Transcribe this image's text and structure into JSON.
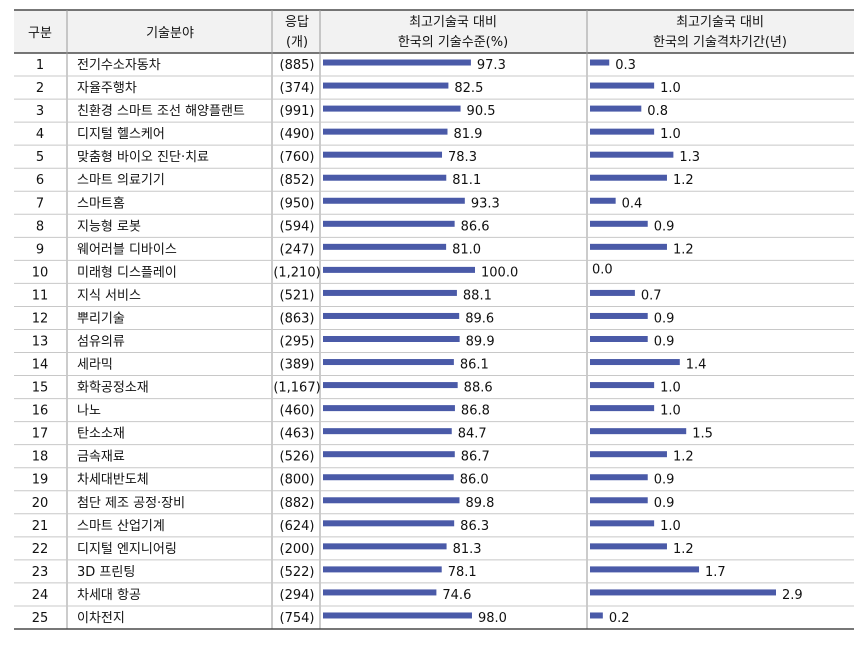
{
  "headers": {
    "no": "구분",
    "field": "기술분야",
    "resp_line1": "응답",
    "resp_line2": "(개)",
    "level_line1": "최고기술국 대비",
    "level_line2": "한국의 기술수준(%)",
    "gap_line1": "최고기술국 대비",
    "gap_line2": "한국의 기술격차기간(년)"
  },
  "chart_data": {
    "type": "table",
    "columns": [
      "구분",
      "기술분야",
      "응답 (개)",
      "최고기술국 대비 한국의 기술수준(%)",
      "최고기술국 대비 한국의 기술격차기간(년)"
    ],
    "level_max": 100,
    "gap_max": 2.9,
    "rows": [
      {
        "no": "1",
        "field": "전기수소자동차",
        "responses": "(885)",
        "level": 97.3,
        "level_label": "97.3",
        "gap": 0.3,
        "gap_label": "0.3"
      },
      {
        "no": "2",
        "field": "자율주행차",
        "responses": "(374)",
        "level": 82.5,
        "level_label": "82.5",
        "gap": 1.0,
        "gap_label": "1.0"
      },
      {
        "no": "3",
        "field": "친환경 스마트 조선 해양플랜트",
        "responses": "(991)",
        "level": 90.5,
        "level_label": "90.5",
        "gap": 0.8,
        "gap_label": "0.8"
      },
      {
        "no": "4",
        "field": "디지털 헬스케어",
        "responses": "(490)",
        "level": 81.9,
        "level_label": "81.9",
        "gap": 1.0,
        "gap_label": "1.0"
      },
      {
        "no": "5",
        "field": "맞춤형 바이오 진단·치료",
        "responses": "(760)",
        "level": 78.3,
        "level_label": "78.3",
        "gap": 1.3,
        "gap_label": "1.3"
      },
      {
        "no": "6",
        "field": "스마트 의료기기",
        "responses": "(852)",
        "level": 81.1,
        "level_label": "81.1",
        "gap": 1.2,
        "gap_label": "1.2"
      },
      {
        "no": "7",
        "field": "스마트홈",
        "responses": "(950)",
        "level": 93.3,
        "level_label": "93.3",
        "gap": 0.4,
        "gap_label": "0.4"
      },
      {
        "no": "8",
        "field": "지능형 로봇",
        "responses": "(594)",
        "level": 86.6,
        "level_label": "86.6",
        "gap": 0.9,
        "gap_label": "0.9"
      },
      {
        "no": "9",
        "field": "웨어러블 디바이스",
        "responses": "(247)",
        "level": 81.0,
        "level_label": "81.0",
        "gap": 1.2,
        "gap_label": "1.2"
      },
      {
        "no": "10",
        "field": "미래형 디스플레이",
        "responses": "(1,210)",
        "level": 100.0,
        "level_label": "100.0",
        "gap": 0.0,
        "gap_label": "0.0"
      },
      {
        "no": "11",
        "field": "지식 서비스",
        "responses": "(521)",
        "level": 88.1,
        "level_label": "88.1",
        "gap": 0.7,
        "gap_label": "0.7"
      },
      {
        "no": "12",
        "field": "뿌리기술",
        "responses": "(863)",
        "level": 89.6,
        "level_label": "89.6",
        "gap": 0.9,
        "gap_label": "0.9"
      },
      {
        "no": "13",
        "field": "섬유의류",
        "responses": "(295)",
        "level": 89.9,
        "level_label": "89.9",
        "gap": 0.9,
        "gap_label": "0.9"
      },
      {
        "no": "14",
        "field": "세라믹",
        "responses": "(389)",
        "level": 86.1,
        "level_label": "86.1",
        "gap": 1.4,
        "gap_label": "1.4"
      },
      {
        "no": "15",
        "field": "화학공정소재",
        "responses": "(1,167)",
        "level": 88.6,
        "level_label": "88.6",
        "gap": 1.0,
        "gap_label": "1.0"
      },
      {
        "no": "16",
        "field": "나노",
        "responses": "(460)",
        "level": 86.8,
        "level_label": "86.8",
        "gap": 1.0,
        "gap_label": "1.0"
      },
      {
        "no": "17",
        "field": "탄소소재",
        "responses": "(463)",
        "level": 84.7,
        "level_label": "84.7",
        "gap": 1.5,
        "gap_label": "1.5"
      },
      {
        "no": "18",
        "field": "금속재료",
        "responses": "(526)",
        "level": 86.7,
        "level_label": "86.7",
        "gap": 1.2,
        "gap_label": "1.2"
      },
      {
        "no": "19",
        "field": "차세대반도체",
        "responses": "(800)",
        "level": 86.0,
        "level_label": "86.0",
        "gap": 0.9,
        "gap_label": "0.9"
      },
      {
        "no": "20",
        "field": "첨단 제조 공정·장비",
        "responses": "(882)",
        "level": 89.8,
        "level_label": "89.8",
        "gap": 0.9,
        "gap_label": "0.9"
      },
      {
        "no": "21",
        "field": "스마트 산업기계",
        "responses": "(624)",
        "level": 86.3,
        "level_label": "86.3",
        "gap": 1.0,
        "gap_label": "1.0"
      },
      {
        "no": "22",
        "field": "디지털 엔지니어링",
        "responses": "(200)",
        "level": 81.3,
        "level_label": "81.3",
        "gap": 1.2,
        "gap_label": "1.2"
      },
      {
        "no": "23",
        "field": "3D 프린팅",
        "responses": "(522)",
        "level": 78.1,
        "level_label": "78.1",
        "gap": 1.7,
        "gap_label": "1.7"
      },
      {
        "no": "24",
        "field": "차세대 항공",
        "responses": "(294)",
        "level": 74.6,
        "level_label": "74.6",
        "gap": 2.9,
        "gap_label": "2.9"
      },
      {
        "no": "25",
        "field": "이차전지",
        "responses": "(754)",
        "level": 98.0,
        "level_label": "98.0",
        "gap": 0.2,
        "gap_label": "0.2"
      }
    ]
  },
  "colors": {
    "bar": "#4a5aa8",
    "header_bg": "#f2f2f2"
  }
}
